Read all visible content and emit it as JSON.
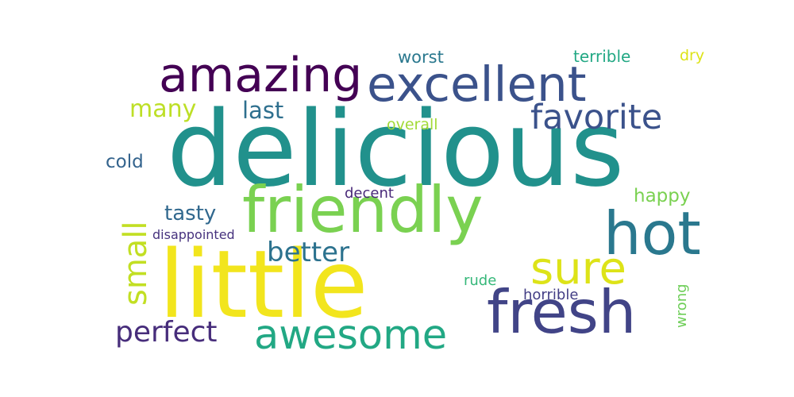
{
  "words": {
    "delicious": {
      "text": "delicious",
      "color": "#21918c"
    },
    "little": {
      "text": "little",
      "color": "#f2e51d"
    },
    "friendly": {
      "text": "friendly",
      "color": "#7ad151"
    },
    "excellent": {
      "text": "excellent",
      "color": "#3b528b"
    },
    "amazing": {
      "text": "amazing",
      "color": "#440154"
    },
    "fresh": {
      "text": "fresh",
      "color": "#414487"
    },
    "hot": {
      "text": "hot",
      "color": "#2a788e"
    },
    "awesome": {
      "text": "awesome",
      "color": "#22a884"
    },
    "sure": {
      "text": "sure",
      "color": "#dde318"
    },
    "favorite": {
      "text": "favorite",
      "color": "#3b528b"
    },
    "small": {
      "text": "small",
      "color": "#c2df23"
    },
    "perfect": {
      "text": "perfect",
      "color": "#472d7b"
    },
    "better": {
      "text": "better",
      "color": "#2c728e"
    },
    "many": {
      "text": "many",
      "color": "#bddf26"
    },
    "last": {
      "text": "last",
      "color": "#2e6f8e"
    },
    "tasty": {
      "text": "tasty",
      "color": "#31688e"
    },
    "cold": {
      "text": "cold",
      "color": "#33638d"
    },
    "happy": {
      "text": "happy",
      "color": "#7ad151"
    },
    "worst": {
      "text": "worst",
      "color": "#2a788e"
    },
    "terrible": {
      "text": "terrible",
      "color": "#22a884"
    },
    "dry": {
      "text": "dry",
      "color": "#dde318"
    },
    "overall": {
      "text": "overall",
      "color": "#a2da37"
    },
    "decent": {
      "text": "decent",
      "color": "#482878"
    },
    "disappointed": {
      "text": "disappointed",
      "color": "#46327e"
    },
    "rude": {
      "text": "rude",
      "color": "#35b779"
    },
    "horrible": {
      "text": "horrible",
      "color": "#433e85"
    },
    "wrong": {
      "text": "wrong",
      "color": "#6ece58"
    }
  }
}
